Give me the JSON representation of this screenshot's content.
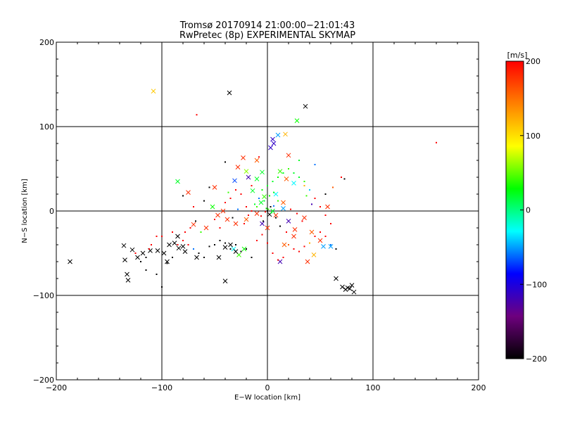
{
  "chart_data": {
    "type": "scatter",
    "title": "Tromsø 20170914 21:00:00−21:01:43",
    "subtitle": "RwPretec (8p) EXPERIMENTAL SKYMAP",
    "xlabel": "E−W location [km]",
    "ylabel": "N−S location [km]",
    "xlim": [
      -200,
      200
    ],
    "ylim": [
      -200,
      200
    ],
    "xticks": [
      "−200",
      "−100",
      "0",
      "100",
      "200"
    ],
    "yticks": [
      "−200",
      "−100",
      "0",
      "100",
      "200"
    ],
    "grid": true,
    "colorbar": {
      "label": "[m/s]",
      "range": [
        -200,
        200
      ],
      "ticks": [
        "200",
        "100",
        "0",
        "−100",
        "−200"
      ],
      "colormap": [
        "#000000",
        "#6e007e",
        "#0000ff",
        "#00ffff",
        "#00ff00",
        "#ffff00",
        "#ff8000",
        "#ff0000"
      ]
    },
    "series": [
      {
        "marker": "x",
        "points": [
          [
            -108,
            142,
            110
          ],
          [
            -36,
            140,
            -200
          ],
          [
            36,
            124,
            -200
          ],
          [
            28,
            107,
            30
          ],
          [
            17,
            91,
            120
          ],
          [
            10,
            90,
            -50
          ],
          [
            5,
            85,
            -110
          ],
          [
            6,
            80,
            -110
          ],
          [
            3,
            75,
            -110
          ],
          [
            -23,
            63,
            180
          ],
          [
            -10,
            60,
            160
          ],
          [
            20,
            66,
            180
          ],
          [
            -28,
            52,
            180
          ],
          [
            -50,
            28,
            180
          ],
          [
            -85,
            35,
            20
          ],
          [
            -20,
            47,
            60
          ],
          [
            -10,
            38,
            20
          ],
          [
            -31,
            36,
            -70
          ],
          [
            -18,
            40,
            -120
          ],
          [
            -5,
            46,
            20
          ],
          [
            12,
            47,
            40
          ],
          [
            18,
            38,
            160
          ],
          [
            25,
            33,
            -30
          ],
          [
            -52,
            5,
            30
          ],
          [
            -42,
            0,
            180
          ],
          [
            -38,
            -10,
            180
          ],
          [
            -30,
            -15,
            180
          ],
          [
            -20,
            -10,
            160
          ],
          [
            -10,
            -3,
            180
          ],
          [
            0,
            -20,
            180
          ],
          [
            8,
            -5,
            180
          ],
          [
            15,
            10,
            160
          ],
          [
            20,
            -12,
            -120
          ],
          [
            26,
            -22,
            180
          ],
          [
            35,
            -8,
            180
          ],
          [
            42,
            -25,
            160
          ],
          [
            50,
            -35,
            180
          ],
          [
            60,
            -42,
            -50
          ],
          [
            57,
            5,
            180
          ],
          [
            -75,
            22,
            180
          ],
          [
            -58,
            -20,
            180
          ],
          [
            -70,
            -16,
            180
          ],
          [
            -47,
            -5,
            180
          ],
          [
            -32,
            -45,
            -30
          ],
          [
            -22,
            -45,
            30
          ],
          [
            -27,
            -52,
            40
          ],
          [
            16,
            -40,
            160
          ],
          [
            25,
            -30,
            180
          ],
          [
            38,
            -60,
            180
          ],
          [
            44,
            -52,
            120
          ],
          [
            53,
            -42,
            -50
          ],
          [
            12,
            -60,
            -120
          ],
          [
            -5,
            -15,
            -120
          ],
          [
            2,
            -4,
            -200
          ],
          [
            5,
            0,
            20
          ],
          [
            -6,
            10,
            20
          ],
          [
            -3,
            17,
            40
          ],
          [
            8,
            20,
            -30
          ],
          [
            15,
            3,
            -50
          ],
          [
            -14,
            24,
            20
          ],
          [
            -35,
            -40,
            -200
          ],
          [
            -40,
            -43,
            -200
          ],
          [
            -30,
            -48,
            -200
          ],
          [
            -46,
            -55,
            -200
          ],
          [
            -67,
            -55,
            -200
          ],
          [
            -78,
            -48,
            -200
          ],
          [
            -84,
            -44,
            -200
          ],
          [
            -88,
            -38,
            -200
          ],
          [
            -93,
            -40,
            -200
          ],
          [
            -98,
            -50,
            -200
          ],
          [
            -104,
            -47,
            -200
          ],
          [
            -111,
            -47,
            -200
          ],
          [
            -118,
            -50,
            -200
          ],
          [
            -123,
            -55,
            -200
          ],
          [
            -95,
            -60,
            -200
          ],
          [
            -136,
            -41,
            -200
          ],
          [
            -128,
            -46,
            -200
          ],
          [
            -135,
            -58,
            -200
          ],
          [
            -133,
            -75,
            -200
          ],
          [
            -132,
            -82,
            -200
          ],
          [
            -187,
            -60,
            -200
          ],
          [
            -40,
            -83,
            -200
          ],
          [
            71,
            -90,
            -200
          ],
          [
            74,
            -93,
            -200
          ],
          [
            76,
            -91,
            -200
          ],
          [
            78,
            -92,
            -200
          ],
          [
            80,
            -88,
            -200
          ],
          [
            82,
            -96,
            -200
          ],
          [
            65,
            -80,
            -200
          ],
          [
            -85,
            -30,
            -200
          ],
          [
            -80,
            -42,
            -200
          ]
        ]
      },
      {
        "marker": "dot",
        "points": [
          [
            -67,
            114,
            200
          ],
          [
            160,
            81,
            200
          ],
          [
            -8,
            64,
            200
          ],
          [
            30,
            60,
            20
          ],
          [
            45,
            55,
            -60
          ],
          [
            -40,
            58,
            -200
          ],
          [
            -55,
            28,
            -200
          ],
          [
            -60,
            12,
            -200
          ],
          [
            -15,
            30,
            200
          ],
          [
            35,
            30,
            120
          ],
          [
            55,
            20,
            -200
          ],
          [
            62,
            28,
            160
          ],
          [
            73,
            38,
            -200
          ],
          [
            70,
            40,
            200
          ],
          [
            -80,
            18,
            -200
          ],
          [
            -70,
            5,
            200
          ],
          [
            -100,
            -30,
            200
          ],
          [
            -110,
            -40,
            200
          ],
          [
            -115,
            -55,
            -200
          ],
          [
            -120,
            -60,
            -200
          ],
          [
            -115,
            -70,
            -200
          ],
          [
            -105,
            -75,
            -200
          ],
          [
            -100,
            -90,
            -200
          ],
          [
            -95,
            -62,
            -200
          ],
          [
            -90,
            -55,
            -200
          ],
          [
            -85,
            -40,
            200
          ],
          [
            -80,
            -35,
            200
          ],
          [
            -75,
            -40,
            200
          ],
          [
            -70,
            -45,
            -60
          ],
          [
            -65,
            -50,
            -200
          ],
          [
            -60,
            -55,
            -200
          ],
          [
            -55,
            -42,
            -200
          ],
          [
            -50,
            -40,
            -200
          ],
          [
            -45,
            -35,
            -200
          ],
          [
            -40,
            -38,
            -200
          ],
          [
            -35,
            -45,
            -200
          ],
          [
            -30,
            -40,
            -200
          ],
          [
            -25,
            -48,
            -200
          ],
          [
            -20,
            -45,
            -200
          ],
          [
            -15,
            -55,
            -200
          ],
          [
            -10,
            -35,
            200
          ],
          [
            -5,
            -28,
            200
          ],
          [
            0,
            -38,
            200
          ],
          [
            5,
            -50,
            200
          ],
          [
            10,
            -58,
            200
          ],
          [
            15,
            -55,
            200
          ],
          [
            20,
            -40,
            160
          ],
          [
            25,
            -45,
            200
          ],
          [
            30,
            -48,
            200
          ],
          [
            35,
            -42,
            200
          ],
          [
            40,
            -38,
            120
          ],
          [
            45,
            -30,
            200
          ],
          [
            50,
            -25,
            200
          ],
          [
            55,
            -30,
            200
          ],
          [
            60,
            -40,
            -60
          ],
          [
            65,
            -45,
            -200
          ],
          [
            -50,
            -10,
            200
          ],
          [
            -45,
            -20,
            200
          ],
          [
            -40,
            10,
            200
          ],
          [
            -35,
            15,
            200
          ],
          [
            -30,
            25,
            200
          ],
          [
            -25,
            20,
            200
          ],
          [
            -20,
            5,
            200
          ],
          [
            -15,
            0,
            200
          ],
          [
            -10,
            5,
            40
          ],
          [
            -5,
            25,
            30
          ],
          [
            0,
            30,
            20
          ],
          [
            5,
            35,
            20
          ],
          [
            10,
            40,
            30
          ],
          [
            15,
            45,
            20
          ],
          [
            20,
            50,
            40
          ],
          [
            25,
            45,
            20
          ],
          [
            30,
            40,
            20
          ],
          [
            35,
            35,
            40
          ],
          [
            40,
            25,
            -40
          ],
          [
            45,
            15,
            200
          ],
          [
            50,
            5,
            200
          ],
          [
            55,
            -5,
            200
          ],
          [
            60,
            -15,
            200
          ],
          [
            -3,
            12,
            20
          ],
          [
            2,
            18,
            30
          ],
          [
            6,
            22,
            20
          ],
          [
            -8,
            15,
            -60
          ],
          [
            10,
            12,
            40
          ],
          [
            -12,
            8,
            20
          ],
          [
            3,
            5,
            -200
          ],
          [
            8,
            -8,
            -200
          ],
          [
            -4,
            -12,
            -200
          ],
          [
            12,
            -18,
            -200
          ],
          [
            18,
            -25,
            200
          ],
          [
            -18,
            -5,
            200
          ],
          [
            -22,
            -15,
            200
          ],
          [
            22,
            2,
            200
          ],
          [
            28,
            -3,
            200
          ],
          [
            33,
            -12,
            200
          ],
          [
            -28,
            2,
            -60
          ],
          [
            -33,
            -8,
            -200
          ],
          [
            37,
            18,
            40
          ],
          [
            -37,
            22,
            40
          ],
          [
            42,
            8,
            -120
          ],
          [
            -63,
            -25,
            40
          ],
          [
            -68,
            -12,
            -200
          ],
          [
            -73,
            -20,
            200
          ],
          [
            -78,
            -25,
            200
          ],
          [
            -90,
            -25,
            200
          ],
          [
            -105,
            -30,
            200
          ],
          [
            -112,
            -45,
            200
          ],
          [
            -125,
            -50,
            200
          ],
          [
            0,
            0,
            -200
          ],
          [
            1,
            2,
            40
          ],
          [
            -2,
            -1,
            200
          ],
          [
            4,
            -2,
            20
          ],
          [
            -1,
            3,
            30
          ],
          [
            6,
            6,
            -60
          ],
          [
            -6,
            -6,
            200
          ]
        ]
      }
    ]
  }
}
